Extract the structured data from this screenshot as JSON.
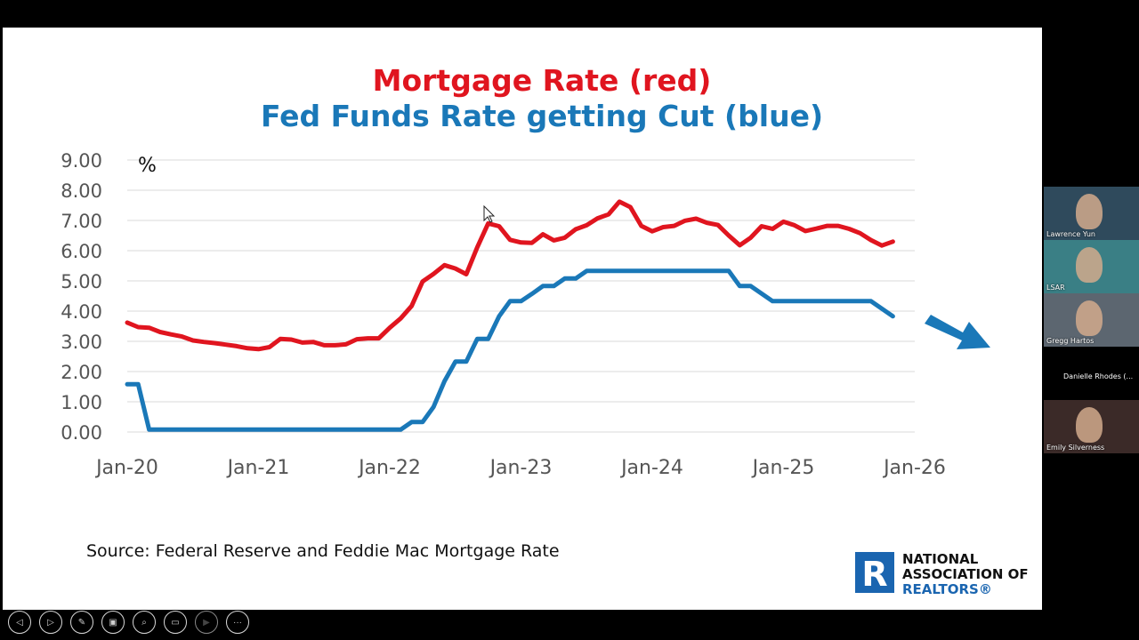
{
  "slide": {
    "title_line1": "Mortgage Rate (red)",
    "title_line2": "Fed Funds Rate getting Cut (blue)",
    "source": "Source: Federal Reserve and Feddie Mac Mortgage Rate",
    "logo": {
      "line1": "NATIONAL",
      "line2": "ASSOCIATION OF",
      "line3": "REALTORS®",
      "mark": "R"
    }
  },
  "chart_data": {
    "type": "line",
    "unit_label": "%",
    "ylim": [
      0,
      9
    ],
    "yticks": [
      "0.00",
      "1.00",
      "2.00",
      "3.00",
      "4.00",
      "5.00",
      "6.00",
      "7.00",
      "8.00",
      "9.00"
    ],
    "xticks": [
      "Jan-20",
      "Jan-21",
      "Jan-22",
      "Jan-23",
      "Jan-24",
      "Jan-25",
      "Jan-26"
    ],
    "x_range_months": [
      0,
      72
    ],
    "grid": true,
    "series": [
      {
        "color": "#e0151f",
        "x": [
          0,
          1,
          2,
          3,
          4,
          5,
          6,
          7,
          8,
          9,
          10,
          11,
          12,
          13,
          14,
          15,
          16,
          17,
          18,
          19,
          20,
          21,
          22,
          23,
          24,
          25,
          26,
          27,
          28,
          29,
          30,
          31,
          32,
          33,
          34,
          35,
          36,
          37,
          38,
          39,
          40,
          41,
          42,
          43,
          44,
          45,
          46,
          47,
          48,
          49,
          50,
          51,
          52,
          53,
          54,
          55,
          56,
          57,
          58,
          59,
          60,
          61,
          62,
          63,
          64,
          65,
          66,
          67,
          68,
          69,
          70
        ],
        "values": [
          3.62,
          3.47,
          3.45,
          3.31,
          3.23,
          3.16,
          3.03,
          2.98,
          2.94,
          2.89,
          2.84,
          2.77,
          2.74,
          2.81,
          3.08,
          3.06,
          2.96,
          2.98,
          2.87,
          2.87,
          2.9,
          3.07,
          3.1,
          3.1,
          3.45,
          3.76,
          4.17,
          4.98,
          5.23,
          5.52,
          5.41,
          5.22,
          6.11,
          6.9,
          6.81,
          6.36,
          6.27,
          6.26,
          6.54,
          6.34,
          6.43,
          6.71,
          6.84,
          7.07,
          7.2,
          7.62,
          7.44,
          6.82,
          6.64,
          6.78,
          6.82,
          6.99,
          7.06,
          6.92,
          6.85,
          6.5,
          6.18,
          6.43,
          6.81,
          6.72,
          6.96,
          6.84,
          6.65,
          6.73,
          6.82,
          6.82,
          6.72,
          6.58,
          6.35,
          6.17,
          6.3
        ]
      },
      {
        "color": "#1a78b8",
        "x": [
          0,
          1,
          2,
          3,
          4,
          5,
          6,
          7,
          8,
          9,
          10,
          11,
          12,
          13,
          14,
          15,
          16,
          17,
          18,
          19,
          20,
          21,
          22,
          23,
          24,
          25,
          26,
          27,
          28,
          29,
          30,
          31,
          32,
          33,
          34,
          35,
          36,
          37,
          38,
          39,
          40,
          41,
          42,
          43,
          44,
          45,
          46,
          47,
          48,
          49,
          50,
          51,
          52,
          53,
          54,
          55,
          56,
          57,
          58,
          59,
          60,
          61,
          62,
          63,
          64,
          65,
          66,
          67,
          68,
          69,
          70
        ],
        "values": [
          1.58,
          1.58,
          0.08,
          0.08,
          0.08,
          0.08,
          0.08,
          0.08,
          0.08,
          0.08,
          0.08,
          0.08,
          0.08,
          0.08,
          0.08,
          0.08,
          0.08,
          0.08,
          0.08,
          0.08,
          0.08,
          0.08,
          0.08,
          0.08,
          0.08,
          0.08,
          0.33,
          0.33,
          0.83,
          1.68,
          2.33,
          2.33,
          3.08,
          3.08,
          3.83,
          4.33,
          4.33,
          4.57,
          4.83,
          4.83,
          5.08,
          5.08,
          5.33,
          5.33,
          5.33,
          5.33,
          5.33,
          5.33,
          5.33,
          5.33,
          5.33,
          5.33,
          5.33,
          5.33,
          5.33,
          5.33,
          4.83,
          4.83,
          4.58,
          4.33,
          4.33,
          4.33,
          4.33,
          4.33,
          4.33,
          4.33,
          4.33,
          4.33,
          4.33,
          4.08,
          3.83
        ]
      }
    ],
    "trend_arrow_color": "#1a78b8"
  },
  "toolbar": {
    "items": [
      {
        "icon": "prev-arrow-icon",
        "glyph": "◁"
      },
      {
        "icon": "next-arrow-icon",
        "glyph": "▷"
      },
      {
        "icon": "pen-icon",
        "glyph": "✎"
      },
      {
        "icon": "slides-icon",
        "glyph": "▣"
      },
      {
        "icon": "zoom-icon",
        "glyph": "⌕"
      },
      {
        "icon": "subtitles-icon",
        "glyph": "▭"
      },
      {
        "icon": "video-icon",
        "glyph": "▶"
      },
      {
        "icon": "more-icon",
        "glyph": "···"
      }
    ]
  },
  "participants": [
    {
      "name": "Lawrence Yun",
      "bg": "#2f4a5c"
    },
    {
      "name": "LSAR",
      "bg": "#3a7f85"
    },
    {
      "name": "Gregg Hartos",
      "bg": "#5c6670"
    },
    {
      "name": "Danielle Rhodes (...",
      "bg": "#000000"
    },
    {
      "name": "Emily Silverness",
      "bg": "#3b2a28"
    }
  ]
}
